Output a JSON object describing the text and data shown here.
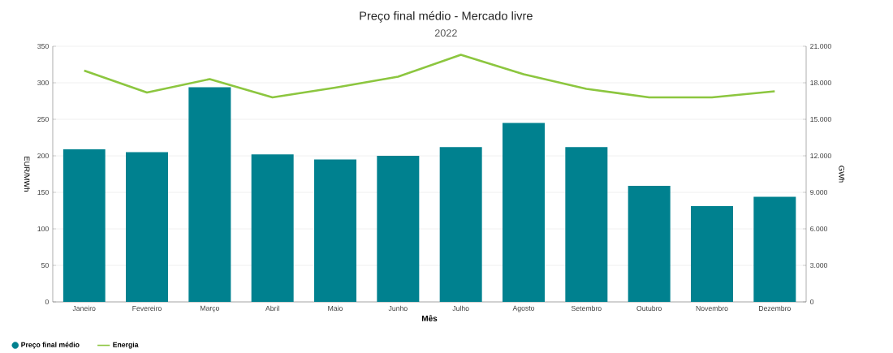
{
  "chart_data": {
    "type": "bar",
    "title": "Preço final médio - Mercado livre",
    "subtitle": "2022",
    "xlabel": "Mês",
    "ylabel": "EUR/MWh",
    "y2label": "GWh",
    "categories": [
      "Janeiro",
      "Fevereiro",
      "Março",
      "Abril",
      "Maio",
      "Junho",
      "Julho",
      "Agosto",
      "Setembro",
      "Outubro",
      "Novembro",
      "Dezembro"
    ],
    "series": [
      {
        "name": "Preço final médio",
        "color": "#00818f",
        "values": [
          209,
          205,
          294,
          202,
          195,
          200,
          212,
          245,
          212,
          159,
          131,
          144
        ]
      },
      {
        "name": "Energia",
        "type": "line",
        "axis": "y2",
        "color": "#8cc63f",
        "values": [
          19000,
          17200,
          18300,
          16800,
          17600,
          18500,
          20300,
          18700,
          17500,
          16800,
          16800,
          17300
        ]
      }
    ],
    "ylim": [
      0,
      350
    ],
    "yticks": [
      0,
      50,
      100,
      150,
      200,
      250,
      300,
      350
    ],
    "y2lim": [
      0,
      21000
    ],
    "y2ticks": [
      0,
      {
        "value": 3000,
        "label": "3.000"
      },
      {
        "value": 6000,
        "label": "6.000"
      },
      {
        "value": 9000,
        "label": "9.000"
      },
      {
        "value": 12000,
        "label": "12.000"
      },
      {
        "value": 15000,
        "label": "15.000"
      },
      {
        "value": 18000,
        "label": "18.000"
      },
      {
        "value": 21000,
        "label": "21.000"
      }
    ],
    "grid": "y",
    "legend": "bottom left"
  }
}
